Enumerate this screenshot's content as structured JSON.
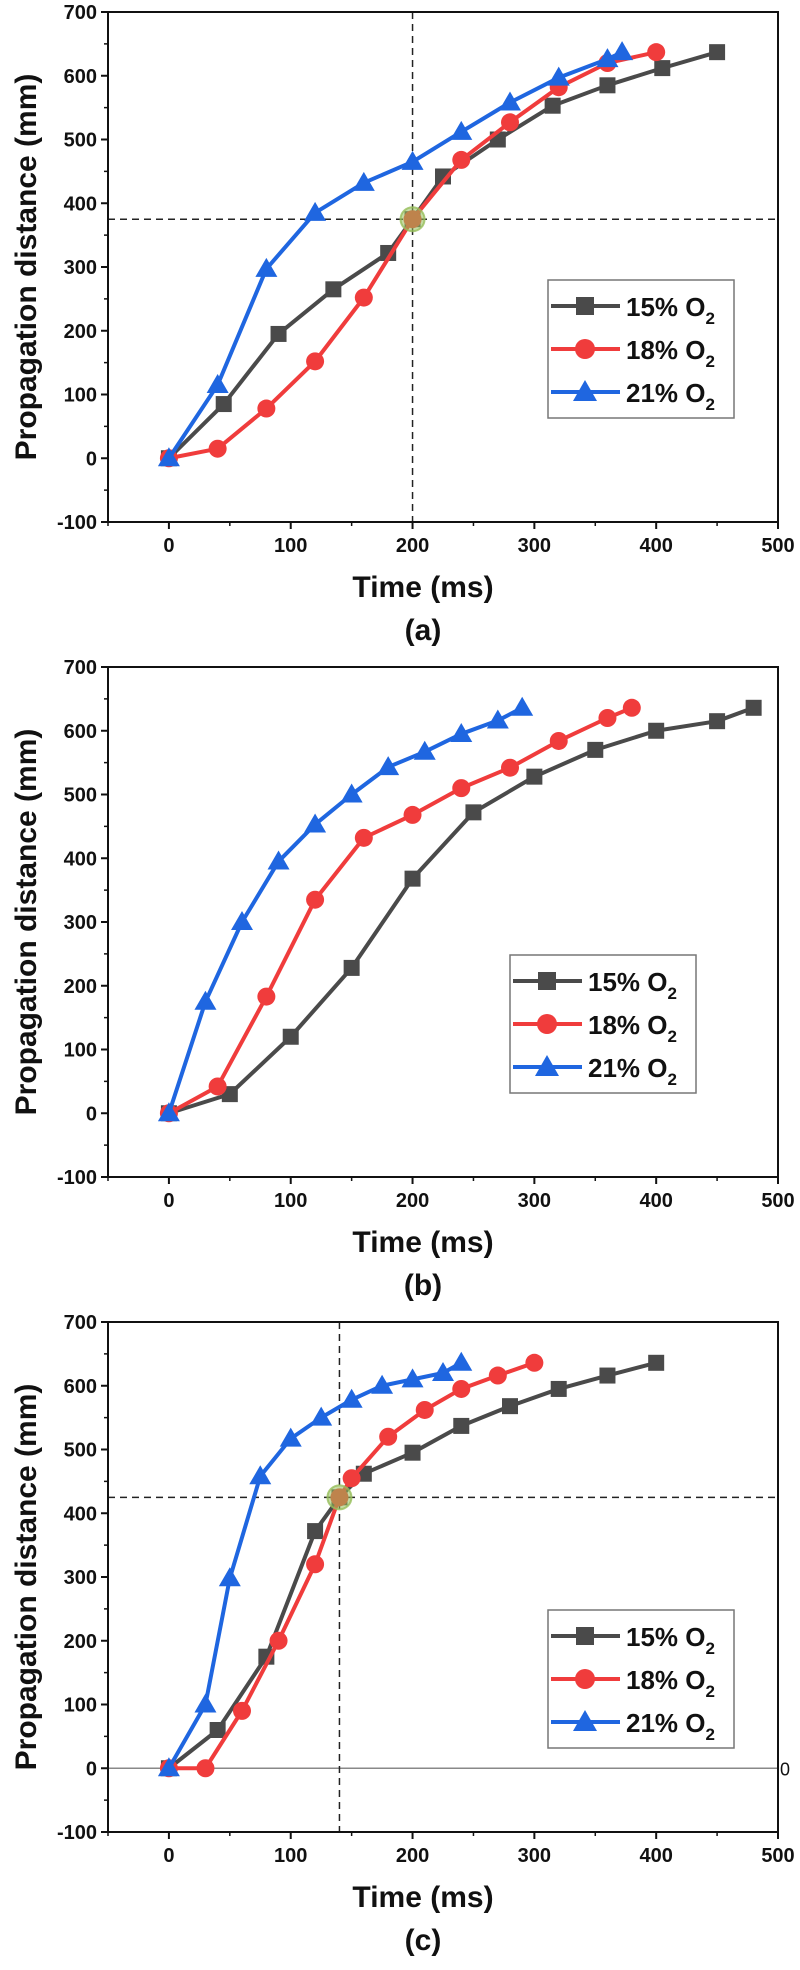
{
  "chart_data": [
    {
      "type": "line",
      "panel_label": "(a)",
      "xlabel": "Time (ms)",
      "ylabel": "Propagation distance (mm)",
      "xlim": [
        -50,
        500
      ],
      "ylim": [
        -100,
        700
      ],
      "xticks": [
        "0",
        "100",
        "200",
        "300",
        "400",
        "500"
      ],
      "yticks": [
        "-100",
        "0",
        "100",
        "200",
        "300",
        "400",
        "500",
        "600",
        "700"
      ],
      "legend_placement": "center-right",
      "reference_lines": {
        "x": 200,
        "y": 375
      },
      "intersection_point": [
        200,
        375
      ],
      "series": [
        {
          "name": "15% O2",
          "label": "15% O",
          "sub": "2",
          "color": "#4a4a4a",
          "marker": "square",
          "x": [
            0,
            45,
            90,
            135,
            180,
            200,
            225,
            270,
            315,
            360,
            405,
            450
          ],
          "y": [
            0,
            85,
            195,
            265,
            322,
            375,
            442,
            500,
            553,
            585,
            612,
            637
          ]
        },
        {
          "name": "18% O2",
          "label": "18% O",
          "sub": "2",
          "color": "#f03c3c",
          "marker": "circle",
          "x": [
            0,
            40,
            80,
            120,
            160,
            200,
            240,
            280,
            320,
            360,
            400
          ],
          "y": [
            0,
            15,
            78,
            152,
            252,
            375,
            468,
            527,
            582,
            620,
            637
          ]
        },
        {
          "name": "21% O2",
          "label": "21% O",
          "sub": "2",
          "color": "#1f66e0",
          "marker": "triangle",
          "x": [
            0,
            40,
            80,
            120,
            160,
            200,
            240,
            280,
            320,
            360,
            372
          ],
          "y": [
            0,
            115,
            297,
            385,
            432,
            465,
            512,
            558,
            597,
            626,
            637
          ]
        }
      ]
    },
    {
      "type": "line",
      "panel_label": "(b)",
      "xlabel": "Time (ms)",
      "ylabel": "Propagation distance (mm)",
      "xlim": [
        -50,
        500
      ],
      "ylim": [
        -100,
        700
      ],
      "xticks": [
        "0",
        "100",
        "200",
        "300",
        "400",
        "500"
      ],
      "yticks": [
        "-100",
        "0",
        "100",
        "200",
        "300",
        "400",
        "500",
        "600",
        "700"
      ],
      "legend_placement": "center-right",
      "series": [
        {
          "name": "15% O2",
          "label": "15% O",
          "sub": "2",
          "color": "#4a4a4a",
          "marker": "square",
          "x": [
            0,
            50,
            100,
            150,
            200,
            250,
            300,
            350,
            400,
            450,
            480
          ],
          "y": [
            0,
            30,
            120,
            228,
            368,
            472,
            528,
            570,
            600,
            615,
            636
          ]
        },
        {
          "name": "18% O2",
          "label": "18% O",
          "sub": "2",
          "color": "#f03c3c",
          "marker": "circle",
          "x": [
            0,
            40,
            80,
            120,
            160,
            200,
            240,
            280,
            320,
            360,
            380
          ],
          "y": [
            0,
            42,
            183,
            335,
            432,
            468,
            510,
            542,
            584,
            620,
            636
          ]
        },
        {
          "name": "21% O2",
          "label": "21% O",
          "sub": "2",
          "color": "#1f66e0",
          "marker": "triangle",
          "x": [
            0,
            30,
            60,
            90,
            120,
            150,
            180,
            210,
            240,
            270,
            290
          ],
          "y": [
            0,
            175,
            300,
            395,
            453,
            500,
            543,
            567,
            595,
            616,
            636
          ]
        }
      ]
    },
    {
      "type": "line",
      "panel_label": "(c)",
      "xlabel": "Time (ms)",
      "ylabel": "Propagation distance (mm)",
      "xlim": [
        -50,
        500
      ],
      "ylim": [
        -100,
        700
      ],
      "xticks": [
        "0",
        "100",
        "200",
        "300",
        "400",
        "500"
      ],
      "yticks": [
        "-100",
        "0",
        "100",
        "200",
        "300",
        "400",
        "500",
        "600",
        "700"
      ],
      "legend_placement": "lower-right",
      "reference_lines": {
        "x": 140,
        "y": 425
      },
      "intersection_point": [
        140,
        425
      ],
      "zero_line": {
        "y": 0,
        "right_label": "0"
      },
      "series": [
        {
          "name": "15% O2",
          "label": "15% O",
          "sub": "2",
          "color": "#4a4a4a",
          "marker": "square",
          "x": [
            0,
            40,
            80,
            120,
            140,
            160,
            200,
            240,
            280,
            320,
            360,
            400
          ],
          "y": [
            0,
            60,
            175,
            372,
            425,
            462,
            495,
            537,
            568,
            595,
            616,
            636
          ]
        },
        {
          "name": "18% O2",
          "label": "18% O",
          "sub": "2",
          "color": "#f03c3c",
          "marker": "circle",
          "x": [
            0,
            30,
            60,
            90,
            120,
            140,
            150,
            180,
            210,
            240,
            270,
            300
          ],
          "y": [
            0,
            0,
            90,
            200,
            320,
            425,
            455,
            520,
            562,
            595,
            616,
            636
          ]
        },
        {
          "name": "21% O2",
          "label": "21% O",
          "sub": "2",
          "color": "#1f66e0",
          "marker": "triangle",
          "x": [
            0,
            30,
            50,
            75,
            100,
            125,
            150,
            175,
            200,
            225,
            240
          ],
          "y": [
            0,
            100,
            298,
            458,
            517,
            550,
            578,
            600,
            610,
            620,
            636
          ]
        }
      ]
    }
  ]
}
